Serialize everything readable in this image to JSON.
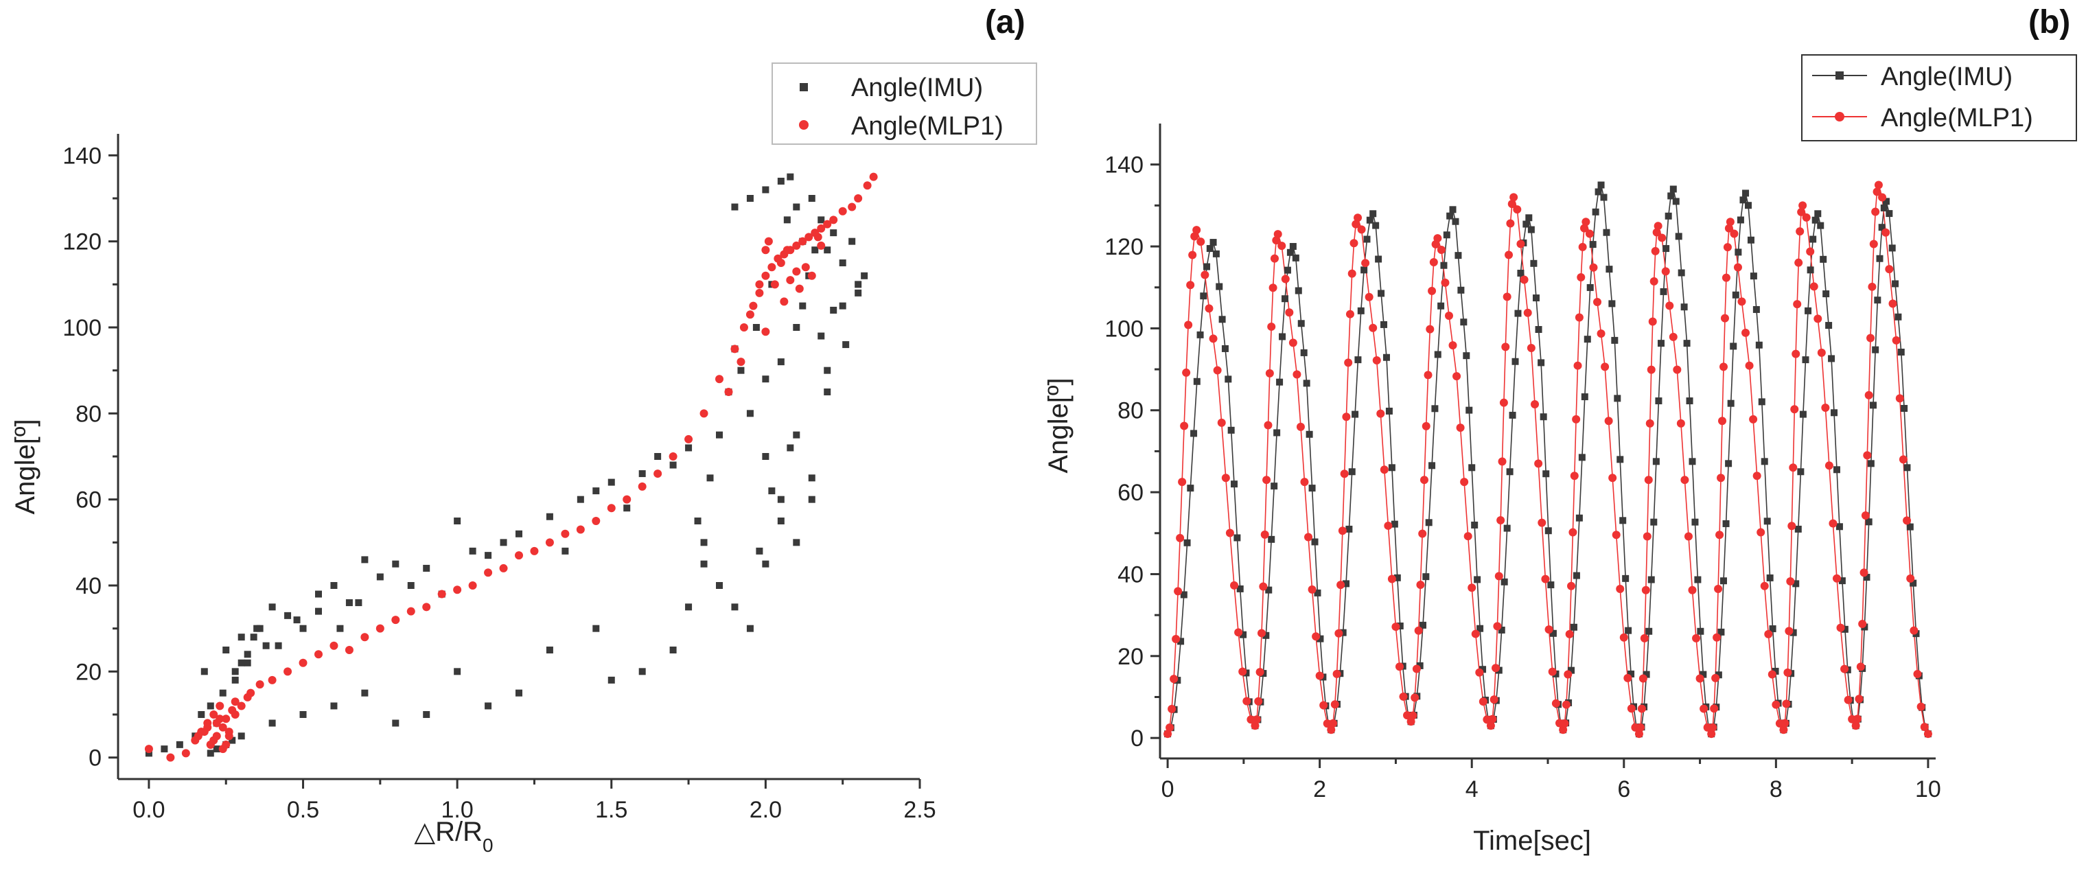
{
  "colors": {
    "imu": "#3a3a3a",
    "mlp": "#ee3333"
  },
  "chart_data": [
    {
      "type": "scatter",
      "panel_label": "(a)",
      "title": "",
      "xlabel": "△R/R",
      "xlabel_subscript": "0",
      "ylabel": "Angle[º]",
      "xlim": [
        -0.1,
        2.5
      ],
      "ylim": [
        -5,
        145
      ],
      "x_ticks": [
        0.0,
        0.5,
        1.0,
        1.5,
        2.0,
        2.5
      ],
      "x_tick_labels": [
        "0.0",
        "0.5",
        "1.0",
        "1.5",
        "2.0",
        "2.5"
      ],
      "y_ticks": [
        0,
        20,
        40,
        60,
        80,
        100,
        120,
        140
      ],
      "y_tick_labels": [
        "0",
        "20",
        "40",
        "60",
        "80",
        "100",
        "120",
        "140"
      ],
      "legend_position": "top-right",
      "series": [
        {
          "name": "Angle(IMU)",
          "marker": "square",
          "x": [
            0.0,
            0.05,
            0.1,
            0.15,
            0.17,
            0.18,
            0.2,
            0.22,
            0.24,
            0.25,
            0.27,
            0.28,
            0.3,
            0.32,
            0.35,
            0.38,
            0.4,
            0.45,
            0.5,
            0.55,
            0.6,
            0.65,
            0.7,
            0.75,
            0.8,
            0.85,
            0.9,
            0.95,
            1.0,
            1.05,
            1.1,
            1.15,
            1.2,
            1.3,
            1.35,
            1.4,
            1.45,
            1.5,
            1.55,
            1.6,
            1.65,
            1.7,
            1.75,
            1.78,
            1.8,
            1.82,
            1.85,
            1.88,
            1.9,
            1.92,
            1.95,
            1.97,
            2.0,
            2.02,
            2.05,
            2.07,
            2.08,
            2.1,
            2.12,
            2.15,
            2.18,
            2.2,
            2.22,
            2.25,
            2.28,
            2.3,
            1.9,
            1.95,
            2.0,
            2.05,
            2.1,
            2.15,
            2.2,
            2.25,
            1.8,
            1.85,
            1.9,
            1.95,
            2.0,
            2.05,
            2.1,
            2.15,
            2.2,
            1.7,
            1.75,
            1.6,
            1.5,
            1.45,
            1.3,
            1.2,
            1.1,
            1.0,
            0.9,
            0.8,
            0.7,
            0.6,
            0.5,
            0.4,
            0.3,
            0.25,
            0.22,
            0.2,
            2.0,
            2.05,
            2.1,
            2.12,
            2.14,
            2.16,
            2.08,
            2.02,
            1.98,
            2.18,
            2.22,
            2.26,
            2.3,
            2.32,
            0.28,
            0.3,
            0.32,
            0.34,
            0.36,
            0.42,
            0.48,
            0.55,
            0.62,
            0.68
          ],
          "y": [
            1,
            2,
            3,
            5,
            10,
            20,
            12,
            8,
            15,
            25,
            4,
            18,
            28,
            22,
            30,
            26,
            35,
            33,
            30,
            38,
            40,
            36,
            46,
            42,
            45,
            40,
            44,
            38,
            55,
            48,
            47,
            50,
            52,
            56,
            48,
            60,
            62,
            64,
            58,
            66,
            70,
            68,
            72,
            55,
            45,
            65,
            75,
            85,
            128,
            90,
            130,
            100,
            132,
            110,
            134,
            125,
            135,
            128,
            120,
            130,
            125,
            118,
            122,
            115,
            120,
            110,
            95,
            80,
            70,
            60,
            50,
            65,
            85,
            105,
            50,
            40,
            35,
            30,
            45,
            55,
            75,
            60,
            90,
            25,
            35,
            20,
            18,
            30,
            25,
            15,
            12,
            20,
            10,
            8,
            15,
            12,
            10,
            8,
            5,
            3,
            2,
            1,
            88,
            92,
            100,
            105,
            112,
            118,
            72,
            62,
            48,
            98,
            104,
            96,
            108,
            112,
            20,
            22,
            24,
            28,
            30,
            26,
            32,
            34,
            30,
            36
          ]
        },
        {
          "name": "Angle(MLP1)",
          "marker": "circle",
          "x": [
            0.0,
            0.07,
            0.12,
            0.15,
            0.17,
            0.19,
            0.2,
            0.21,
            0.22,
            0.23,
            0.24,
            0.25,
            0.26,
            0.27,
            0.28,
            0.3,
            0.33,
            0.36,
            0.4,
            0.45,
            0.5,
            0.55,
            0.6,
            0.65,
            0.7,
            0.75,
            0.8,
            0.85,
            0.9,
            0.95,
            1.0,
            1.05,
            1.1,
            1.15,
            1.2,
            1.25,
            1.3,
            1.35,
            1.4,
            1.45,
            1.5,
            1.55,
            1.6,
            1.65,
            1.7,
            1.75,
            1.8,
            1.85,
            1.9,
            1.93,
            1.96,
            1.98,
            2.0,
            2.02,
            2.04,
            2.06,
            2.08,
            2.1,
            2.12,
            2.14,
            2.16,
            2.18,
            2.2,
            2.22,
            2.25,
            2.28,
            2.3,
            2.33,
            2.35,
            2.0,
            2.05,
            2.1,
            2.15,
            1.98,
            2.03,
            2.08,
            2.13,
            2.18,
            1.95,
            2.0,
            2.06,
            2.11,
            0.18,
            0.2,
            0.22,
            0.24,
            0.26,
            0.19,
            0.21,
            0.23,
            0.25,
            0.16,
            0.28,
            0.32,
            1.92,
            1.88,
            2.01,
            2.07,
            2.17
          ],
          "y": [
            2,
            0,
            1,
            4,
            6,
            8,
            3,
            10,
            5,
            12,
            7,
            9,
            6,
            11,
            13,
            12,
            15,
            17,
            18,
            20,
            22,
            24,
            26,
            25,
            28,
            30,
            32,
            34,
            35,
            38,
            39,
            40,
            43,
            44,
            47,
            48,
            50,
            52,
            53,
            55,
            58,
            60,
            63,
            66,
            70,
            74,
            80,
            88,
            95,
            100,
            105,
            110,
            112,
            114,
            116,
            117,
            118,
            119,
            120,
            121,
            122,
            123,
            124,
            125,
            127,
            128,
            130,
            133,
            135,
            118,
            115,
            113,
            112,
            108,
            110,
            111,
            114,
            119,
            103,
            99,
            106,
            109,
            6,
            3,
            8,
            2,
            5,
            7,
            4,
            9,
            3,
            5,
            10,
            14,
            92,
            85,
            120,
            118,
            121
          ]
        }
      ]
    },
    {
      "type": "line",
      "panel_label": "(b)",
      "title": "",
      "xlabel": "Time[sec]",
      "ylabel": "Angle[º]",
      "xlim": [
        -0.1,
        10.1
      ],
      "ylim": [
        -5,
        150
      ],
      "x_ticks": [
        0,
        2,
        4,
        6,
        8,
        10
      ],
      "x_tick_labels": [
        "0",
        "2",
        "4",
        "6",
        "8",
        "10"
      ],
      "y_ticks": [
        0,
        20,
        40,
        60,
        80,
        100,
        120,
        140
      ],
      "y_tick_labels": [
        "0",
        "20",
        "40",
        "60",
        "80",
        "100",
        "120",
        "140"
      ],
      "legend_position": "top-right",
      "cycles": {
        "imu_peak_times": [
          0.6,
          1.65,
          2.7,
          3.75,
          4.75,
          5.7,
          6.65,
          7.6,
          8.55,
          9.45
        ],
        "imu_peak_values": [
          121,
          120,
          128,
          129,
          127,
          135,
          134,
          133,
          128,
          131
        ],
        "mlp_peak_times": [
          0.38,
          1.45,
          2.5,
          3.55,
          4.55,
          5.5,
          6.45,
          7.4,
          8.35,
          9.35
        ],
        "mlp_peak_values": [
          124,
          123,
          127,
          122,
          132,
          126,
          125,
          126,
          130,
          135
        ],
        "minima_times": [
          0.0,
          1.15,
          2.15,
          3.2,
          4.25,
          5.2,
          6.2,
          7.15,
          8.1,
          9.05,
          10.0
        ],
        "minima_values": [
          1,
          3,
          2,
          4,
          3,
          2,
          1,
          1,
          2,
          3,
          1
        ]
      },
      "series": [
        {
          "name": "Angle(IMU)",
          "marker": "square"
        },
        {
          "name": "Angle(MLP1)",
          "marker": "circle"
        }
      ]
    }
  ]
}
